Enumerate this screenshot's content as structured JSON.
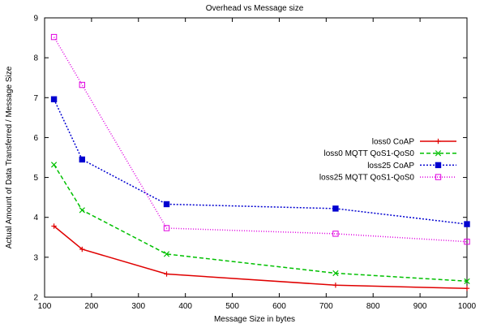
{
  "chart_data": {
    "type": "line",
    "title": "Overhead vs Message size",
    "xlabel": "Message Size in bytes",
    "ylabel": "Actual Amount of Data Transferred / Message Size",
    "xlim": [
      100,
      1000
    ],
    "ylim": [
      2,
      9
    ],
    "xticks": [
      100,
      200,
      300,
      400,
      500,
      600,
      700,
      800,
      900,
      1000
    ],
    "yticks": [
      2,
      3,
      4,
      5,
      6,
      7,
      8,
      9
    ],
    "grid": false,
    "legend_position": "right",
    "series": [
      {
        "name": "loss0 CoAP",
        "color": "#e00000",
        "dash": "solid",
        "marker": "plus",
        "x": [
          120,
          180,
          360,
          720,
          1000
        ],
        "values": [
          3.78,
          3.2,
          2.58,
          2.3,
          2.22
        ]
      },
      {
        "name": "loss0 MQTT QoS1-QoS0",
        "color": "#00c000",
        "dash": "dashed",
        "marker": "cross",
        "x": [
          120,
          180,
          360,
          720,
          1000
        ],
        "values": [
          5.32,
          4.18,
          3.08,
          2.6,
          2.4
        ]
      },
      {
        "name": "loss25 CoAP",
        "color": "#0000d0",
        "dash": "dotted",
        "marker": "filled-square",
        "x": [
          120,
          180,
          360,
          720,
          1000
        ],
        "values": [
          6.96,
          5.45,
          4.33,
          4.22,
          3.83
        ]
      },
      {
        "name": "loss25 MQTT QoS1-QoS0",
        "color": "#e000e0",
        "dash": "fine-dotted",
        "marker": "open-square",
        "x": [
          120,
          180,
          360,
          720,
          1000
        ],
        "values": [
          8.52,
          7.32,
          3.73,
          3.59,
          3.39
        ]
      }
    ]
  }
}
